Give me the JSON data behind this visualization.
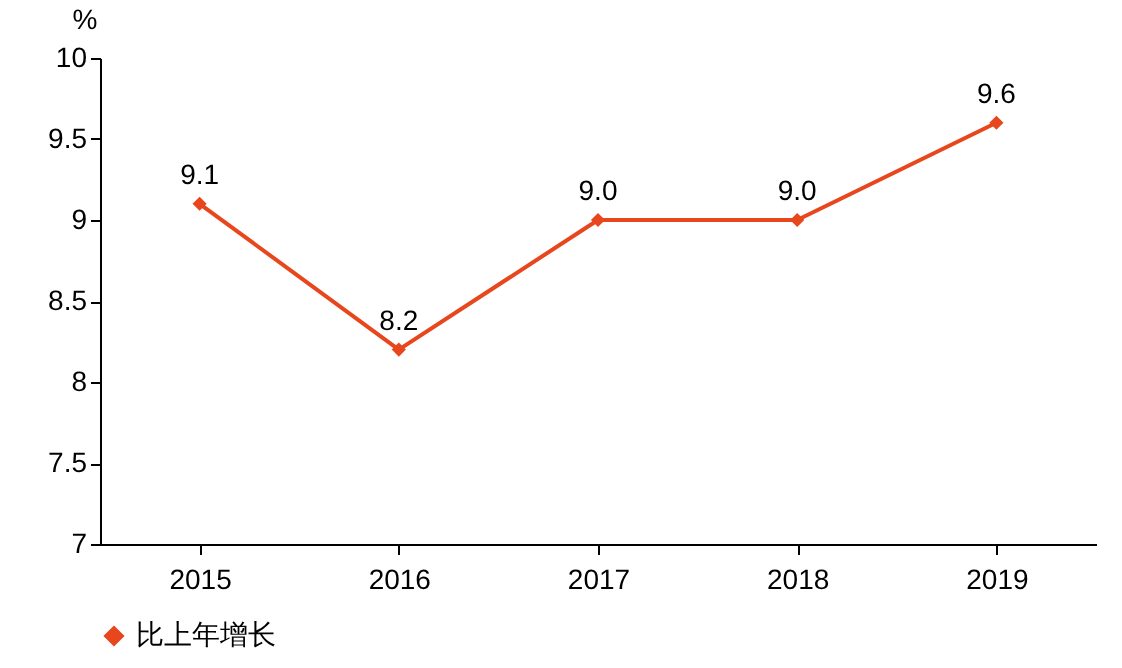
{
  "chart_data": {
    "type": "line",
    "ylabel": "%",
    "categories": [
      "2015",
      "2016",
      "2017",
      "2018",
      "2019"
    ],
    "series": [
      {
        "name": "比上年增长",
        "color": "#e8461c",
        "values": [
          9.1,
          8.2,
          9.0,
          9.0,
          9.6
        ],
        "value_labels": [
          "9.1",
          "8.2",
          "9.0",
          "9.0",
          "9.6"
        ]
      }
    ],
    "ylim": [
      7,
      10
    ],
    "yticks": [
      7,
      7.5,
      8,
      8.5,
      9,
      9.5,
      10
    ],
    "legend": "bottom",
    "marker": "diamond",
    "line_style": "solid"
  }
}
